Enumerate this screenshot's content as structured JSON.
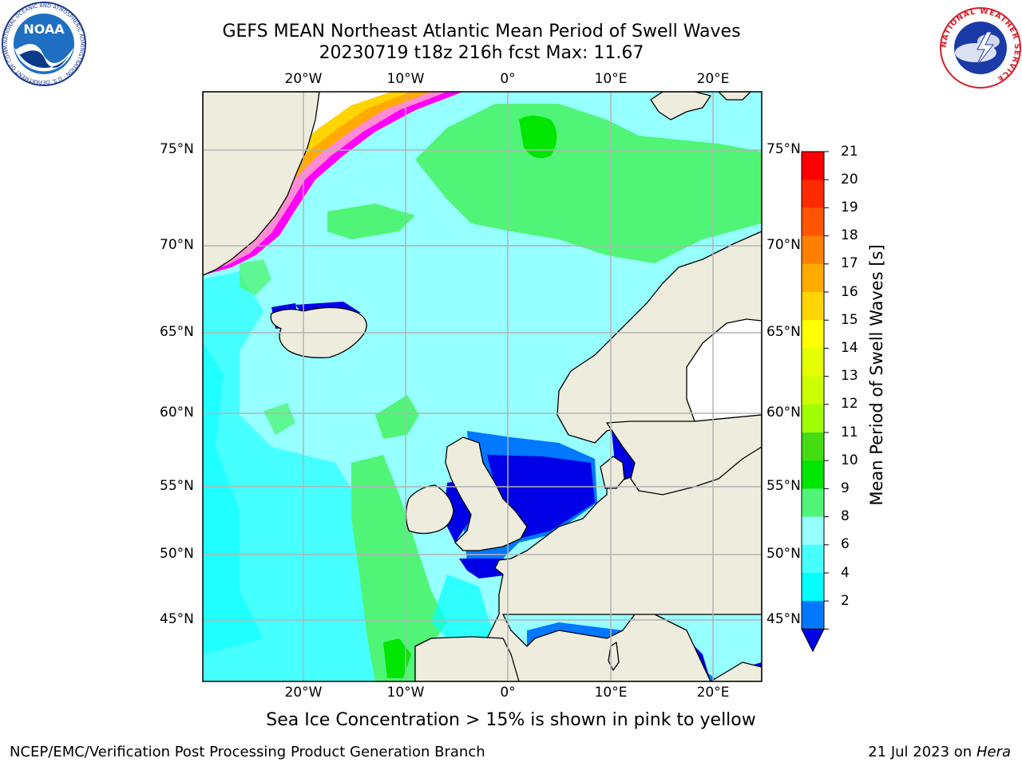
{
  "title": {
    "line1": "GEFS MEAN Northeast Atlantic Mean Period of Swell Waves",
    "line2": "20230719 t18z 216h fcst   Max: 11.67"
  },
  "map": {
    "lon_labels": [
      "20°W",
      "10°W",
      "0°",
      "10°E",
      "20°E"
    ],
    "lat_labels": [
      "75°N",
      "70°N",
      "65°N",
      "60°N",
      "55°N",
      "50°N",
      "45°N"
    ],
    "colors": {
      "land": "#eeecdd",
      "grid": "#b3b3b3",
      "coast": "#000000"
    }
  },
  "colorbar": {
    "label": "Mean Period of Swell Waves [s]",
    "ticks": [
      "21",
      "20",
      "19",
      "18",
      "17",
      "16",
      "15",
      "14",
      "13",
      "12",
      "11",
      "10",
      "9",
      "8",
      "6",
      "4",
      "2"
    ],
    "colors_top_to_bottom": [
      "#ff0000",
      "#ff2a00",
      "#ff5500",
      "#ff8000",
      "#ffaa00",
      "#ffd400",
      "#ffff00",
      "#e6ff00",
      "#ccff00",
      "#a0ff00",
      "#46dc14",
      "#00e600",
      "#50f578",
      "#96ffff",
      "#46ffff",
      "#00ffff",
      "#0078ff",
      "#0000e6"
    ]
  },
  "caption": "Sea Ice Concentration > 15% is shown in pink to yellow",
  "footer": {
    "left": "NCEP/EMC/Verification Post Processing Product Generation Branch",
    "right_prefix": "21 Jul 2023 on ",
    "right_machine": "Hera"
  },
  "logos": {
    "noaa": "NOAA",
    "noaa_ring": "NATIONAL OCEANIC AND ATMOSPHERIC ADMINISTRATION · U.S. DEPARTMENT OF COMMERCE",
    "nws_ring": "NATIONAL WEATHER SERVICE"
  }
}
